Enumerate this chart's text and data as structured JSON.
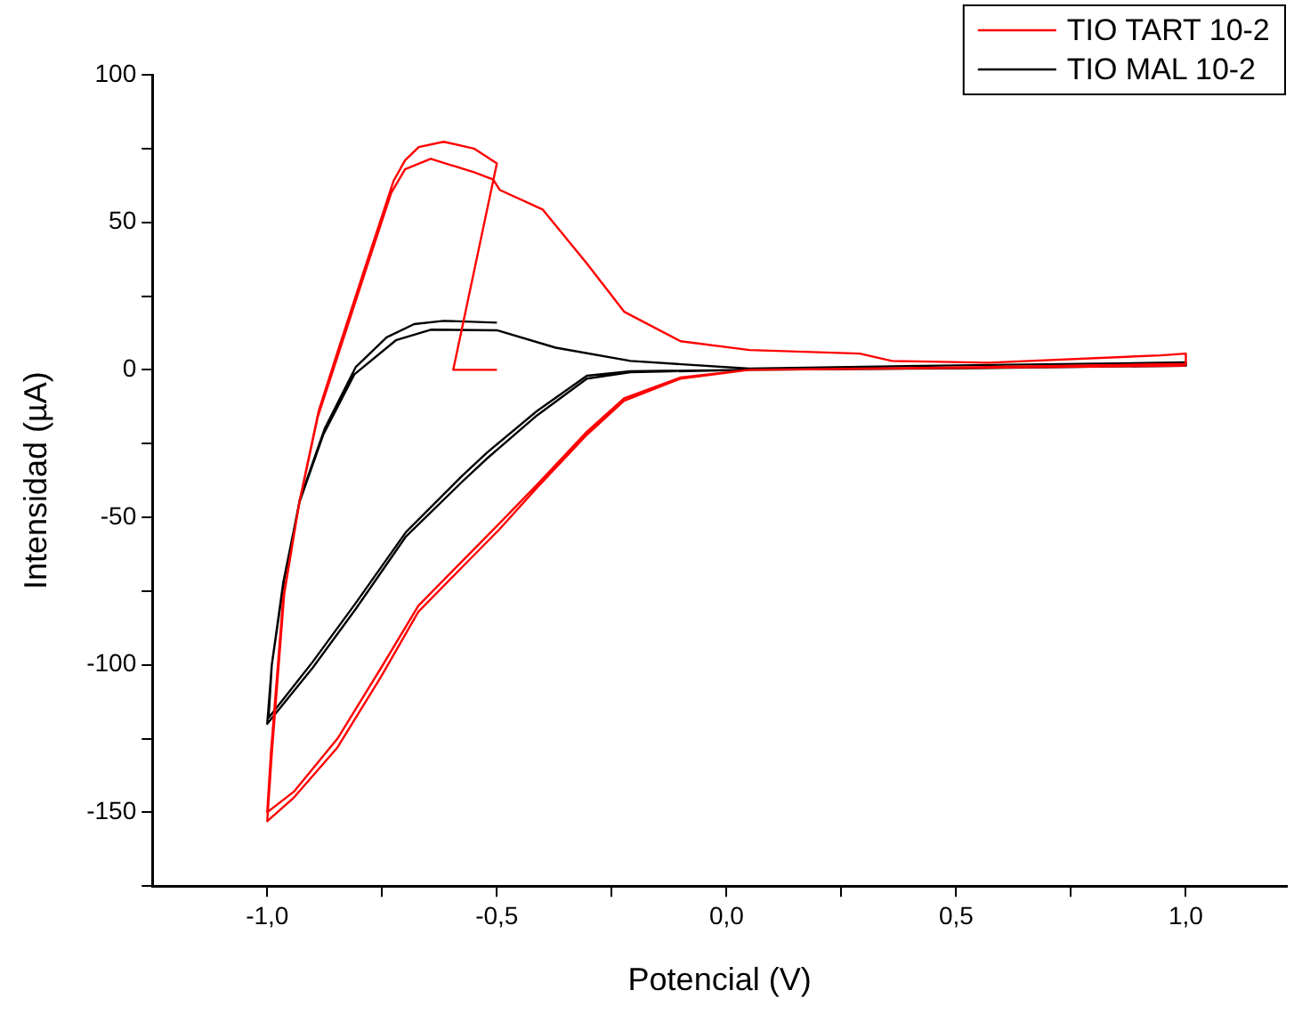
{
  "chart_data": {
    "type": "line",
    "xlabel": "Potencial (V)",
    "ylabel": "Intensidad (µA)",
    "xlim": [
      -1.25,
      1.22
    ],
    "ylim": [
      -175,
      100
    ],
    "xticks": [
      {
        "value": -1,
        "label": "-1,0"
      },
      {
        "value": -0.75,
        "label": null
      },
      {
        "value": -0.5,
        "label": "-0,5"
      },
      {
        "value": -0.25,
        "label": null
      },
      {
        "value": 0,
        "label": "0,0"
      },
      {
        "value": 0.25,
        "label": null
      },
      {
        "value": 0.5,
        "label": "0,5"
      },
      {
        "value": 0.75,
        "label": null
      },
      {
        "value": 1,
        "label": "1,0"
      }
    ],
    "yticks": [
      {
        "value": -175,
        "label": null
      },
      -150,
      {
        "value": -125,
        "label": null
      },
      -100,
      {
        "value": -75,
        "label": null
      },
      -50,
      {
        "value": -25,
        "label": null
      },
      0,
      {
        "value": 25,
        "label": null
      },
      50,
      {
        "value": 75,
        "label": null
      },
      100
    ],
    "grid": false,
    "legend": "top right",
    "marker": "none",
    "line_style": "solid",
    "series": [
      {
        "name": "TIO TART 10-2",
        "color": "#ff0000",
        "x": [
          -0.5,
          -0.595,
          -0.5,
          -0.55,
          -0.616,
          -0.67,
          -0.7,
          -0.725,
          -0.78,
          -0.847,
          -0.888,
          -0.929,
          -0.963,
          -0.99,
          -1.0,
          -0.942,
          -0.847,
          -0.752,
          -0.671,
          -0.589,
          -0.494,
          -0.413,
          -0.304,
          -0.223,
          -0.1,
          0.05,
          0.5,
          1.0,
          1.0,
          0.945,
          0.57,
          0.36,
          0.29,
          0.05,
          -0.1,
          -0.223,
          -0.304,
          -0.4,
          -0.494,
          -0.508,
          -0.55,
          -0.644,
          -0.7,
          -0.73,
          -0.785,
          -0.85,
          -0.89,
          -0.93,
          -0.965,
          -0.992,
          -1.0,
          -0.942,
          -0.847,
          -0.752,
          -0.671,
          -0.589,
          -0.494,
          -0.413,
          -0.304,
          -0.223,
          -0.1,
          0.05,
          0.5,
          1.0
        ],
        "values": [
          0,
          0,
          70,
          75,
          77.3,
          75.5,
          71,
          64,
          38,
          6,
          -14,
          -44,
          -76,
          -130,
          -153,
          -145,
          -128,
          -104,
          -82,
          -69,
          -54,
          -40,
          -22,
          -10.5,
          -3,
          0,
          0.8,
          2,
          5.5,
          4.9,
          2.4,
          3,
          5.5,
          6.7,
          9.7,
          19.7,
          36,
          54.3,
          61,
          64.5,
          67,
          71.5,
          68,
          60,
          34,
          3,
          -16,
          -45,
          -77,
          -130,
          -150,
          -143,
          -125,
          -101,
          -80,
          -67,
          -52,
          -39,
          -21,
          -9.7,
          -2.6,
          0,
          0.6,
          1.4
        ]
      },
      {
        "name": "TIO MAL 10-2",
        "color": "#000000",
        "x": [
          -0.5,
          -0.616,
          -0.68,
          -0.74,
          -0.807,
          -0.875,
          -0.929,
          -0.963,
          -0.99,
          -1.0,
          -0.901,
          -0.807,
          -0.698,
          -0.576,
          -0.521,
          -0.413,
          -0.304,
          -0.209,
          0.05,
          0.5,
          1.0,
          1.0,
          0.5,
          0.05,
          -0.209,
          -0.372,
          -0.5,
          -0.644,
          -0.72,
          -0.81,
          -0.878,
          -0.93,
          -0.965,
          -0.99,
          -0.997,
          -0.901,
          -0.807,
          -0.698,
          -0.576,
          -0.521,
          -0.413,
          -0.304,
          -0.209,
          0.05,
          0.5,
          1.0
        ],
        "values": [
          16,
          16.6,
          15.5,
          11,
          1,
          -20,
          -44,
          -71,
          -100,
          -120,
          -101,
          -81,
          -56.5,
          -38,
          -30,
          -15.5,
          -3,
          -0.8,
          0,
          0.5,
          1.4,
          2.5,
          1.5,
          0.4,
          3,
          7.5,
          13.4,
          13.6,
          10,
          -1.5,
          -22,
          -45,
          -72,
          -100,
          -118,
          -99,
          -79,
          -55,
          -36,
          -28,
          -14,
          -2,
          -0.5,
          0,
          0.5,
          1.4
        ]
      }
    ]
  }
}
